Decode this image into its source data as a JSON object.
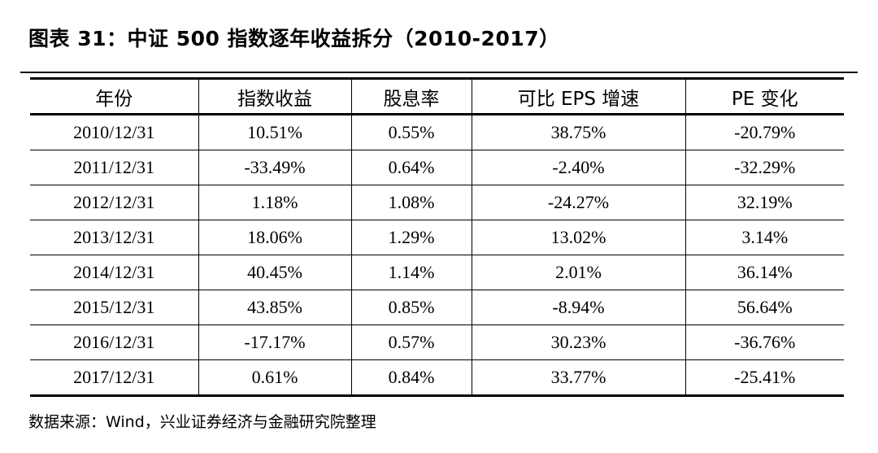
{
  "title": "图表 31：中证 500 指数逐年收益拆分（2010-2017）",
  "table": {
    "headers": [
      "年份",
      "指数收益",
      "股息率",
      "可比 EPS 增速",
      "PE 变化"
    ],
    "rows": [
      [
        "2010/12/31",
        "10.51%",
        "0.55%",
        "38.75%",
        "-20.79%"
      ],
      [
        "2011/12/31",
        "-33.49%",
        "0.64%",
        "-2.40%",
        "-32.29%"
      ],
      [
        "2012/12/31",
        "1.18%",
        "1.08%",
        "-24.27%",
        "32.19%"
      ],
      [
        "2013/12/31",
        "18.06%",
        "1.29%",
        "13.02%",
        "3.14%"
      ],
      [
        "2014/12/31",
        "40.45%",
        "1.14%",
        "2.01%",
        "36.14%"
      ],
      [
        "2015/12/31",
        "43.85%",
        "0.85%",
        "-8.94%",
        "56.64%"
      ],
      [
        "2016/12/31",
        "-17.17%",
        "0.57%",
        "30.23%",
        "-36.76%"
      ],
      [
        "2017/12/31",
        "0.61%",
        "0.84%",
        "33.77%",
        "-25.41%"
      ]
    ]
  },
  "source": "数据来源：Wind，兴业证券经济与金融研究院整理"
}
